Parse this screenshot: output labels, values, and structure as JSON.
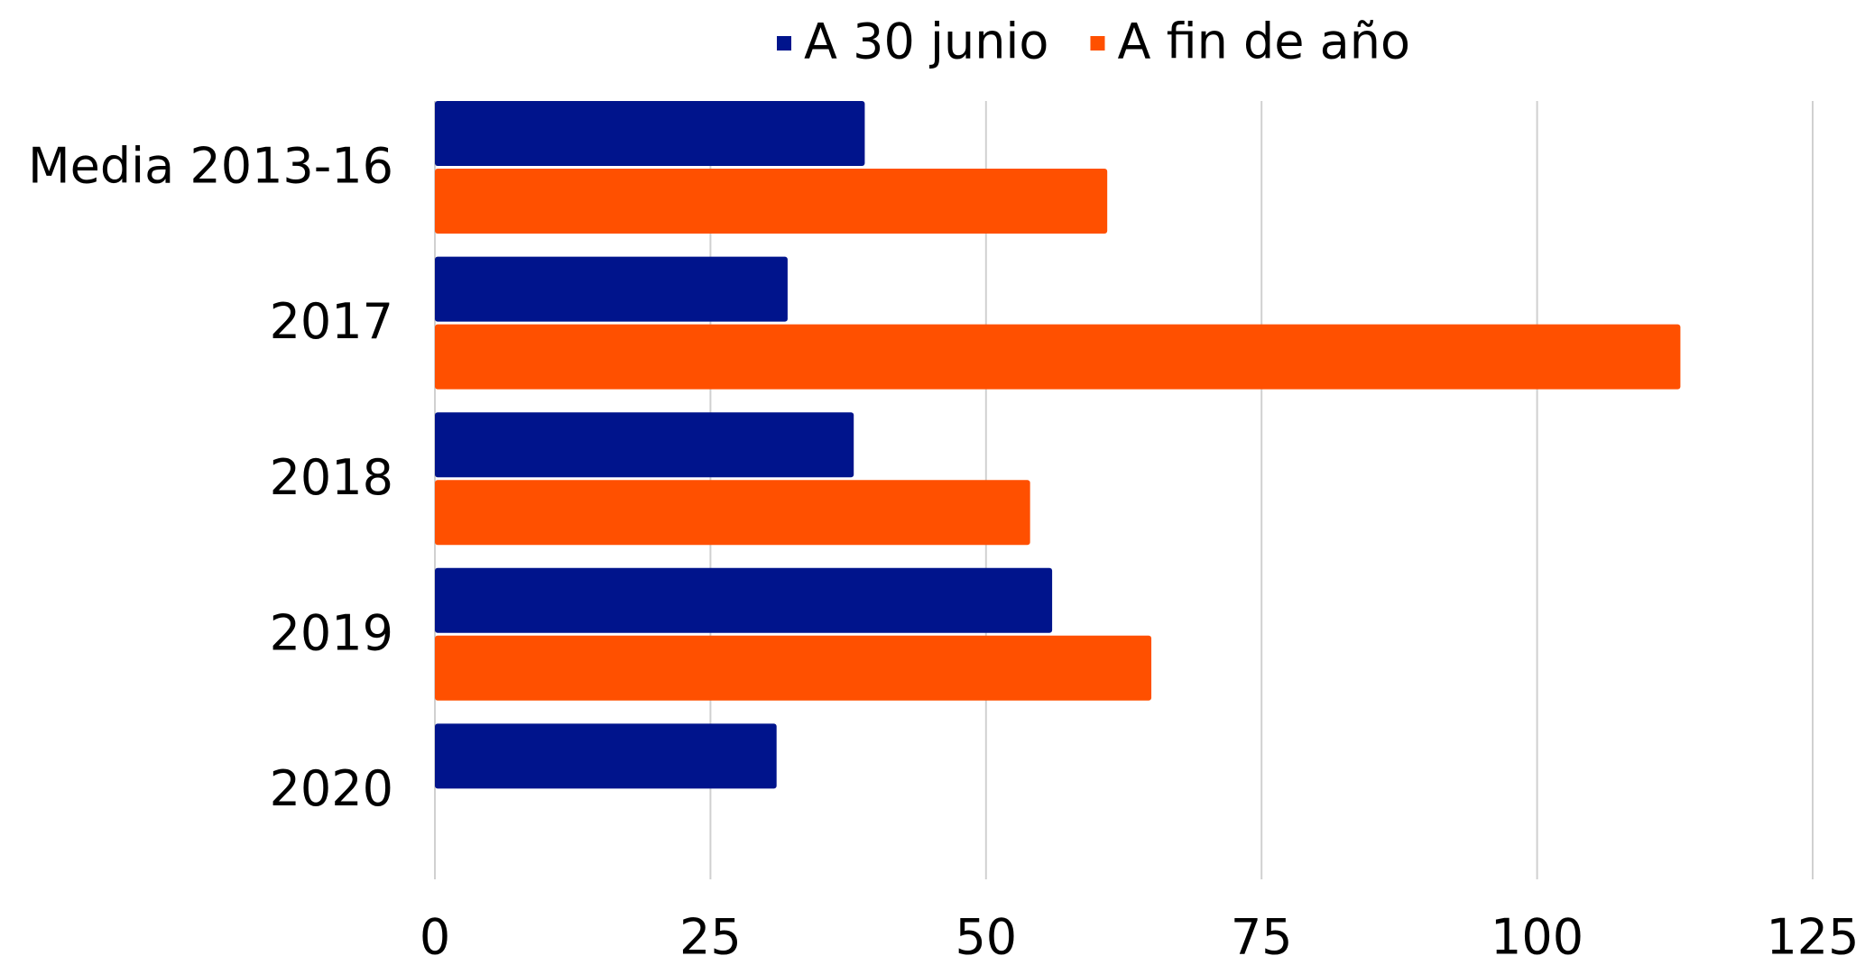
{
  "chart_data": {
    "type": "bar",
    "orientation": "horizontal",
    "categories": [
      "Media 2013-16",
      "2017",
      "2018",
      "2019",
      "2020"
    ],
    "series": [
      {
        "name": "A 30 junio",
        "color": "#00148c",
        "values": [
          39,
          32,
          38,
          56,
          31
        ]
      },
      {
        "name": "A fin de año",
        "color": "#ff5000",
        "values": [
          61,
          113,
          54,
          65,
          null
        ]
      }
    ],
    "xlim": [
      0,
      125
    ],
    "xticks": [
      0,
      25,
      50,
      75,
      100,
      125
    ],
    "grid": true,
    "legend": "top"
  }
}
